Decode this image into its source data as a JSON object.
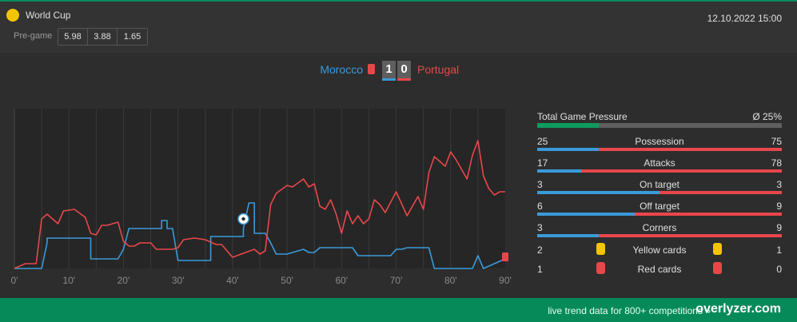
{
  "competition": {
    "name": "World Cup",
    "icon": "yellow-ball-icon"
  },
  "pregame": {
    "label": "Pre-game",
    "odds": [
      "5.98",
      "3.88",
      "1.65"
    ]
  },
  "datetime": "12.10.2022 15:00",
  "match": {
    "home": "Morocco",
    "away": "Portugal",
    "home_score": "1",
    "away_score": "0",
    "home_color": "#3a9ad9",
    "away_color": "#e8474a"
  },
  "chart_data": {
    "type": "line",
    "x_ticks": [
      "0'",
      "10'",
      "20'",
      "30'",
      "40'",
      "50'",
      "60'",
      "70'",
      "80'",
      "90'"
    ],
    "xlim": [
      0,
      90
    ],
    "ylim": [
      0,
      100
    ],
    "grid": true,
    "goal_minute": 42,
    "red_card_minute": 90,
    "series": [
      {
        "name": "Morocco",
        "color": "#3a9ad9",
        "values": [
          [
            0,
            0
          ],
          [
            5,
            0
          ],
          [
            6,
            16
          ],
          [
            6,
            19
          ],
          [
            8,
            19
          ],
          [
            14,
            19
          ],
          [
            14,
            6
          ],
          [
            19,
            6
          ],
          [
            20,
            12
          ],
          [
            21,
            25
          ],
          [
            22,
            25
          ],
          [
            27,
            25
          ],
          [
            27,
            30
          ],
          [
            28,
            30
          ],
          [
            28,
            25
          ],
          [
            29,
            25
          ],
          [
            30,
            5
          ],
          [
            35,
            5
          ],
          [
            36,
            5
          ],
          [
            36,
            20
          ],
          [
            42,
            20
          ],
          [
            42,
            25
          ],
          [
            43,
            41
          ],
          [
            44,
            41
          ],
          [
            44,
            22
          ],
          [
            46,
            22
          ],
          [
            47,
            16
          ],
          [
            48,
            9
          ],
          [
            50,
            9
          ],
          [
            53,
            12
          ],
          [
            54,
            10
          ],
          [
            55,
            10
          ],
          [
            56,
            13
          ],
          [
            58,
            13
          ],
          [
            62,
            13
          ],
          [
            63,
            8
          ],
          [
            69,
            8
          ],
          [
            70,
            12
          ],
          [
            71,
            12
          ],
          [
            72,
            13
          ],
          [
            75,
            13
          ],
          [
            76,
            13
          ],
          [
            77,
            0
          ],
          [
            84,
            0
          ],
          [
            85,
            8
          ],
          [
            86,
            0
          ],
          [
            90,
            6
          ],
          [
            90,
            6
          ]
        ]
      },
      {
        "name": "Portugal",
        "color": "#e8474a",
        "values": [
          [
            0,
            0
          ],
          [
            2,
            3
          ],
          [
            4,
            3
          ],
          [
            5,
            31
          ],
          [
            6,
            34
          ],
          [
            8,
            28
          ],
          [
            9,
            36
          ],
          [
            11,
            37
          ],
          [
            13,
            32
          ],
          [
            14,
            22
          ],
          [
            15,
            21
          ],
          [
            16,
            27
          ],
          [
            17,
            27
          ],
          [
            19,
            29
          ],
          [
            20,
            17
          ],
          [
            21,
            14
          ],
          [
            22,
            14
          ],
          [
            23,
            16
          ],
          [
            25,
            16
          ],
          [
            26,
            12
          ],
          [
            29,
            12
          ],
          [
            30,
            13
          ],
          [
            31,
            18
          ],
          [
            33,
            19
          ],
          [
            35,
            18
          ],
          [
            37,
            15
          ],
          [
            38,
            15
          ],
          [
            40,
            7
          ],
          [
            44,
            12
          ],
          [
            45,
            9
          ],
          [
            46,
            11
          ],
          [
            47,
            40
          ],
          [
            48,
            47
          ],
          [
            50,
            52
          ],
          [
            51,
            51
          ],
          [
            53,
            56
          ],
          [
            54,
            51
          ],
          [
            55,
            53
          ],
          [
            56,
            39
          ],
          [
            57,
            37
          ],
          [
            58,
            43
          ],
          [
            59,
            34
          ],
          [
            60,
            22
          ],
          [
            61,
            36
          ],
          [
            62,
            28
          ],
          [
            63,
            33
          ],
          [
            64,
            28
          ],
          [
            65,
            31
          ],
          [
            66,
            43
          ],
          [
            67,
            40
          ],
          [
            68,
            35
          ],
          [
            70,
            48
          ],
          [
            72,
            33
          ],
          [
            74,
            45
          ],
          [
            75,
            37
          ],
          [
            76,
            60
          ],
          [
            77,
            70
          ],
          [
            79,
            64
          ],
          [
            80,
            73
          ],
          [
            81,
            68
          ],
          [
            83,
            56
          ],
          [
            84,
            71
          ],
          [
            85,
            80
          ],
          [
            86,
            58
          ],
          [
            87,
            50
          ],
          [
            88,
            46
          ],
          [
            89,
            48
          ],
          [
            90,
            48
          ]
        ]
      }
    ]
  },
  "stats": {
    "pressure": {
      "title": "Total Game Pressure",
      "avg": "Ø 25%",
      "value": 25
    },
    "rows": [
      {
        "label": "Possession",
        "home": "25",
        "away": "75"
      },
      {
        "label": "Attacks",
        "home": "17",
        "away": "78"
      },
      {
        "label": "On target",
        "home": "3",
        "away": "3"
      },
      {
        "label": "Off target",
        "home": "6",
        "away": "9"
      },
      {
        "label": "Corners",
        "home": "3",
        "away": "9"
      }
    ],
    "yellow_cards": {
      "label": "Yellow cards",
      "home": "2",
      "away": "1",
      "color": "#f4c400"
    },
    "red_cards": {
      "label": "Red cards",
      "home": "1",
      "away": "0",
      "color": "#e8474a"
    }
  },
  "footer": {
    "text": "live trend data for 800+ competitions »",
    "brand": "overlyzer.com"
  }
}
